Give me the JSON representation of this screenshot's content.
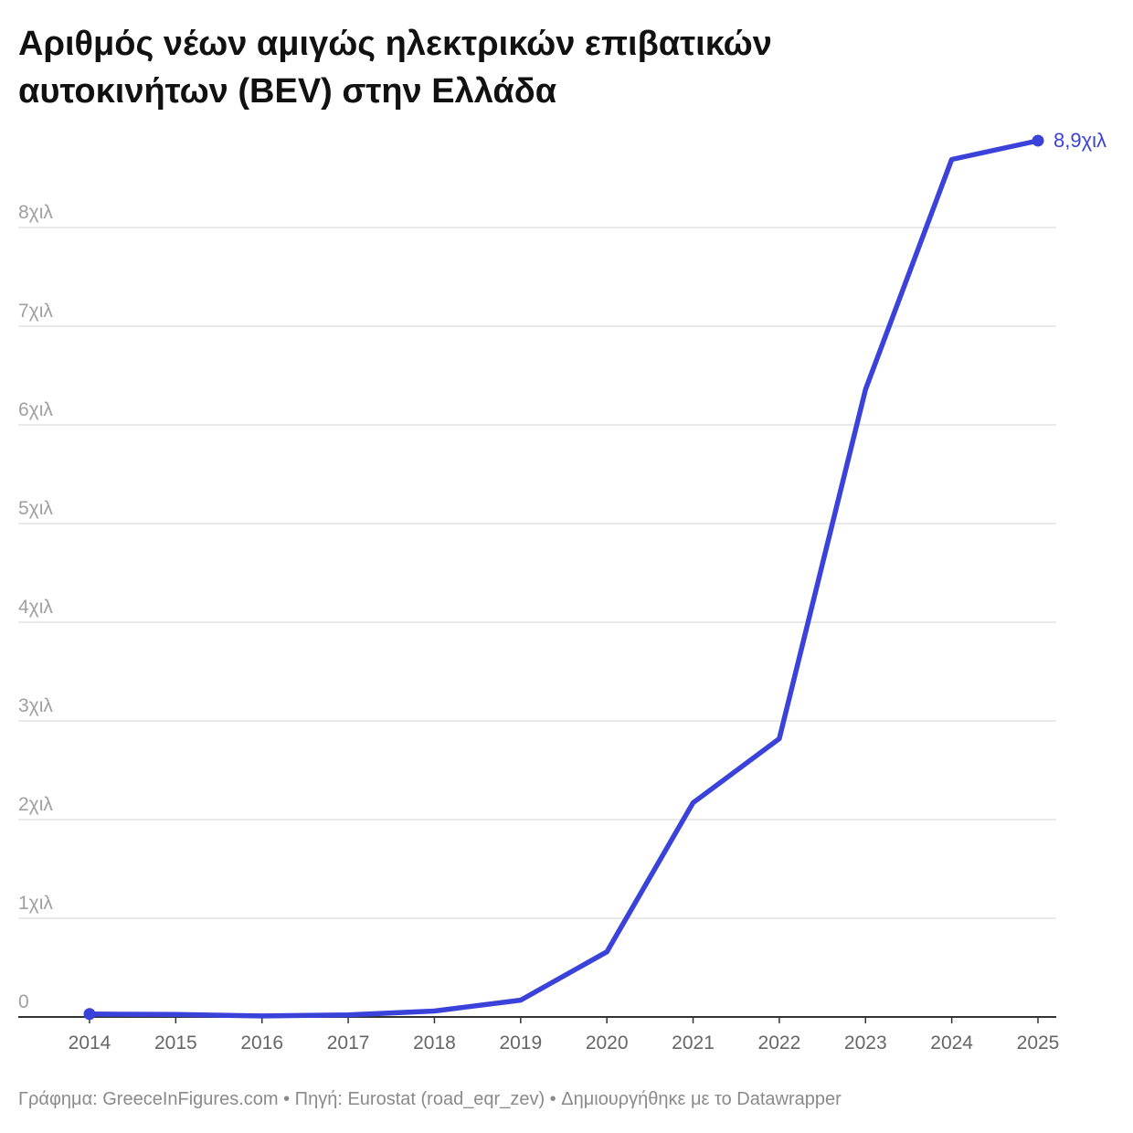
{
  "title_lines": [
    "Αριθμός νέων αμιγώς ηλεκτρικών επιβατικών",
    "αυτοκινήτων (BEV) στην Ελλάδα"
  ],
  "footer": "Γράφημα: GreeceInFigures.com • Πηγή: Eurostat (road_eqr_zev) • Δημιουργήθηκε με το Datawrapper",
  "colors": {
    "line": "#3a42d9",
    "grid": "#e2e2e2",
    "axis": "#333333",
    "tick_text": "#a0a0a0",
    "xtick_text": "#666666"
  },
  "chart_data": {
    "type": "line",
    "x": [
      "2014",
      "2015",
      "2016",
      "2017",
      "2018",
      "2019",
      "2020",
      "2021",
      "2022",
      "2023",
      "2024",
      "2025"
    ],
    "series": [
      {
        "values": [
          30,
          25,
          10,
          20,
          60,
          170,
          660,
          2170,
          2820,
          6360,
          8690,
          8880
        ]
      }
    ],
    "ylim": [
      0,
      9000
    ],
    "yticks": [
      0,
      1000,
      2000,
      3000,
      4000,
      5000,
      6000,
      7000,
      8000
    ],
    "ytick_labels": [
      "0",
      "1χιλ",
      "2χιλ",
      "3χιλ",
      "4χιλ",
      "5χιλ",
      "6χιλ",
      "7χιλ",
      "8χιλ"
    ],
    "end_label": "8,9χιλ",
    "grid": true
  }
}
